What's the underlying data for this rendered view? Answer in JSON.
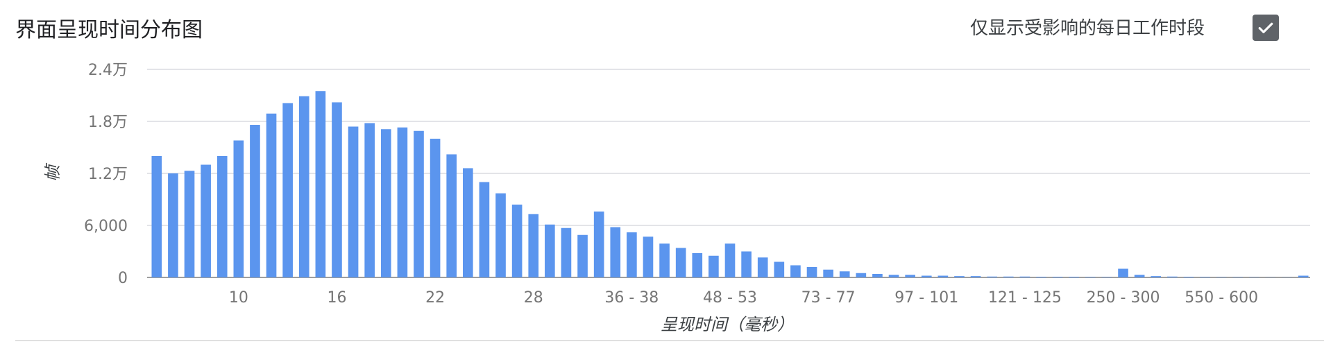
{
  "header": {
    "title": "界面呈现时间分布图",
    "toggle_label": "仅显示受影响的每日工作时段",
    "toggle_checked": true,
    "checkbox_icon": "checkmark-icon"
  },
  "colors": {
    "bar": "#5b95ee",
    "grid": "#dadce0",
    "axis": "#757575",
    "checkbox": "#5f6368"
  },
  "chart_data": {
    "type": "bar",
    "title": "",
    "xlabel": "呈现时间（毫秒）",
    "ylabel": "帧",
    "ylim": [
      0,
      24000
    ],
    "yticks": [
      {
        "value": 0,
        "label": "0"
      },
      {
        "value": 6000,
        "label": "6,000"
      },
      {
        "value": 12000,
        "label": "1.2万"
      },
      {
        "value": 18000,
        "label": "1.8万"
      },
      {
        "value": 24000,
        "label": "2.4万"
      }
    ],
    "xtick_labels": [
      {
        "index": 5,
        "label": "10"
      },
      {
        "index": 11,
        "label": "16"
      },
      {
        "index": 17,
        "label": "22"
      },
      {
        "index": 23,
        "label": "28"
      },
      {
        "index": 29,
        "label": "36 - 38"
      },
      {
        "index": 35,
        "label": "48 - 53"
      },
      {
        "index": 41,
        "label": "73 - 77"
      },
      {
        "index": 47,
        "label": "97 - 101"
      },
      {
        "index": 53,
        "label": "121 - 125"
      },
      {
        "index": 59,
        "label": "250 - 300"
      },
      {
        "index": 65,
        "label": "550 - 600"
      }
    ],
    "grid": true,
    "legend": "none",
    "values": [
      14000,
      12000,
      12300,
      13000,
      14000,
      15800,
      17600,
      18900,
      20100,
      20900,
      21500,
      20200,
      17400,
      17800,
      17100,
      17300,
      16900,
      16000,
      14200,
      12600,
      11000,
      9700,
      8400,
      7300,
      6100,
      5700,
      4900,
      7600,
      5800,
      5200,
      4700,
      3900,
      3400,
      2800,
      2500,
      3900,
      3000,
      2300,
      1800,
      1400,
      1200,
      900,
      700,
      500,
      400,
      300,
      300,
      200,
      200,
      150,
      150,
      100,
      100,
      100,
      80,
      80,
      80,
      60,
      50,
      1000,
      300,
      150,
      100,
      80,
      60,
      40,
      40,
      30,
      20,
      20,
      200
    ]
  }
}
